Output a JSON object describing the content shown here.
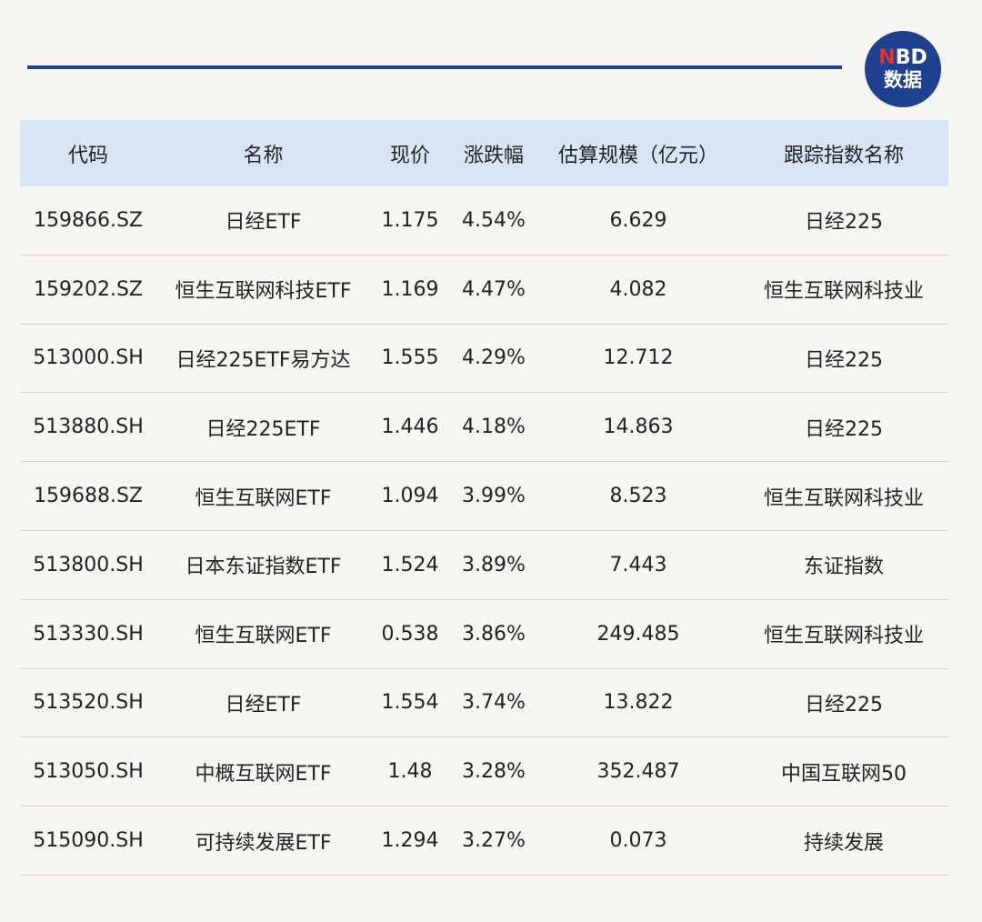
{
  "logo": {
    "letter_n": "N",
    "letters_bd": "BD",
    "subtitle": "数据"
  },
  "table": {
    "headers": [
      "代码",
      "名称",
      "现价",
      "涨跌幅",
      "估算规模（亿元）",
      "跟踪指数名称"
    ],
    "rows": [
      [
        "159866.SZ",
        "日经ETF",
        "1.175",
        "4.54%",
        "6.629",
        "日经225"
      ],
      [
        "159202.SZ",
        "恒生互联网科技ETF",
        "1.169",
        "4.47%",
        "4.082",
        "恒生互联网科技业"
      ],
      [
        "513000.SH",
        "日经225ETF易方达",
        "1.555",
        "4.29%",
        "12.712",
        "日经225"
      ],
      [
        "513880.SH",
        "日经225ETF",
        "1.446",
        "4.18%",
        "14.863",
        "日经225"
      ],
      [
        "159688.SZ",
        "恒生互联网ETF",
        "1.094",
        "3.99%",
        "8.523",
        "恒生互联网科技业"
      ],
      [
        "513800.SH",
        "日本东证指数ETF",
        "1.524",
        "3.89%",
        "7.443",
        "东证指数"
      ],
      [
        "513330.SH",
        "恒生互联网ETF",
        "0.538",
        "3.86%",
        "249.485",
        "恒生互联网科技业"
      ],
      [
        "513520.SH",
        "日经ETF",
        "1.554",
        "3.74%",
        "13.822",
        "日经225"
      ],
      [
        "513050.SH",
        "中概互联网ETF",
        "1.48",
        "3.28%",
        "352.487",
        "中国互联网50"
      ],
      [
        "515090.SH",
        "可持续发展ETF",
        "1.294",
        "3.27%",
        "0.073",
        "持续发展"
      ]
    ]
  },
  "colors": {
    "accent": "#1f3f8f",
    "header_bg": "#d6e4f3",
    "logo_red": "#e2332b",
    "background": "#f7f5f1"
  }
}
